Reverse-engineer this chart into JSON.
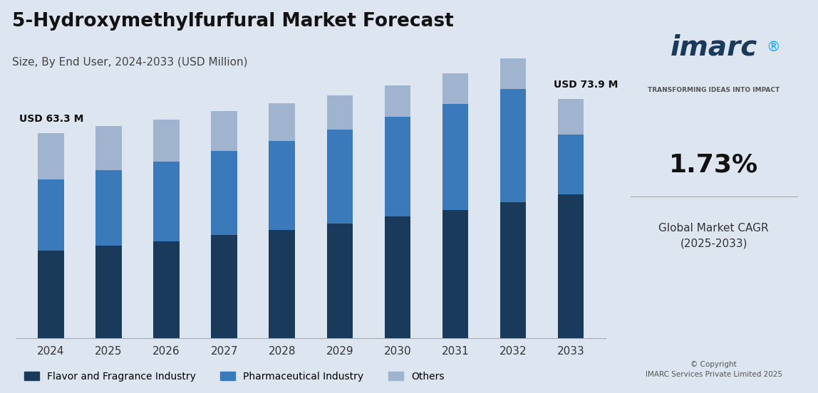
{
  "title": "5-Hydroxymethylfurfural Market Forecast",
  "subtitle": "Size, By End User, 2024-2033 (USD Million)",
  "categories": [
    "2024",
    "2025",
    "2026",
    "2027",
    "2028",
    "2029",
    "2030",
    "2031",
    "2032",
    "2033"
  ],
  "flavor": [
    27.0,
    28.5,
    30.0,
    31.8,
    33.5,
    35.5,
    37.5,
    39.5,
    42.0,
    44.5
  ],
  "pharma": [
    22.0,
    23.5,
    24.5,
    26.0,
    27.5,
    29.0,
    31.0,
    33.0,
    35.0,
    18.5
  ],
  "others": [
    14.3,
    13.5,
    13.0,
    12.5,
    11.5,
    10.5,
    9.5,
    9.5,
    9.5,
    10.9
  ],
  "color_flavor": "#1a3a5c",
  "color_pharma": "#3a7aba",
  "color_others": "#a0b4d0",
  "background_color": "#dde6f0",
  "annotation_2024": "USD 63.3 M",
  "annotation_2033": "USD 73.9 M",
  "legend_labels": [
    "Flavor and Fragrance Industry",
    "Pharmaceutical Industry",
    "Others"
  ],
  "bar_width": 0.45,
  "ylim": [
    0,
    90
  ]
}
